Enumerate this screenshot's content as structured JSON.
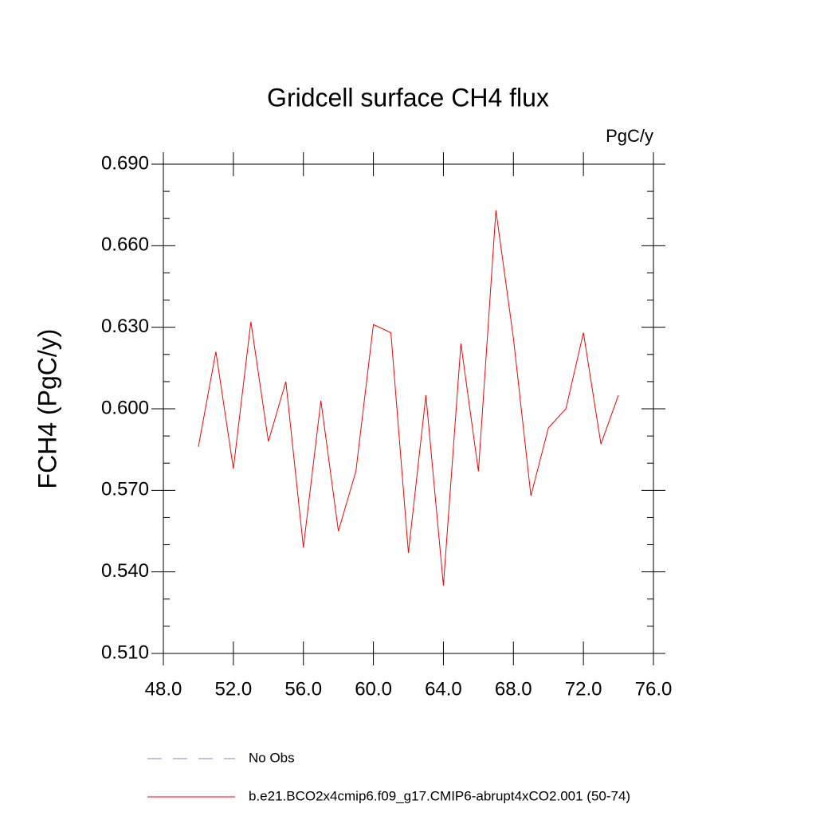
{
  "chart_data": {
    "type": "line",
    "title": "Gridcell surface CH4 flux",
    "units": "PgC/y",
    "ylabel": "FCH4  (PgC/y)",
    "x": [
      50,
      51,
      52,
      53,
      54,
      55,
      56,
      57,
      58,
      59,
      60,
      61,
      62,
      63,
      64,
      65,
      66,
      67,
      68,
      69,
      70,
      71,
      72,
      73,
      74
    ],
    "series": [
      {
        "name": "b.e21.BCO2x4cmip6.f09_g17.CMIP6-abrupt4xCO2.001 (50-74)",
        "color": "#ff0000",
        "values": [
          0.586,
          0.621,
          0.578,
          0.632,
          0.588,
          0.61,
          0.549,
          0.603,
          0.555,
          0.577,
          0.631,
          0.628,
          0.547,
          0.605,
          0.535,
          0.624,
          0.577,
          0.673,
          0.626,
          0.568,
          0.593,
          0.6,
          0.628,
          0.587,
          0.605
        ]
      }
    ],
    "extra_legend": [
      {
        "name": "No Obs",
        "color": "#8080d0",
        "style": "dashed"
      }
    ],
    "xlim": [
      48,
      76
    ],
    "xticks": [
      {
        "value": 48,
        "label": "48.0"
      },
      {
        "value": 52,
        "label": "52.0"
      },
      {
        "value": 56,
        "label": "56.0"
      },
      {
        "value": 60,
        "label": "60.0"
      },
      {
        "value": 64,
        "label": "64.0"
      },
      {
        "value": 68,
        "label": "68.0"
      },
      {
        "value": 72,
        "label": "72.0"
      },
      {
        "value": 76,
        "label": "76.0"
      }
    ],
    "ylim": [
      0.51,
      0.69
    ],
    "yticks": [
      {
        "value": 0.51,
        "label": "0.510"
      },
      {
        "value": 0.54,
        "label": "0.540"
      },
      {
        "value": 0.57,
        "label": "0.570"
      },
      {
        "value": 0.6,
        "label": "0.600"
      },
      {
        "value": 0.63,
        "label": "0.630"
      },
      {
        "value": 0.66,
        "label": "0.660"
      },
      {
        "value": 0.69,
        "label": "0.690"
      }
    ],
    "yminorticks": [
      0.52,
      0.53,
      0.55,
      0.56,
      0.58,
      0.59,
      0.61,
      0.62,
      0.64,
      0.65,
      0.67,
      0.68
    ]
  }
}
